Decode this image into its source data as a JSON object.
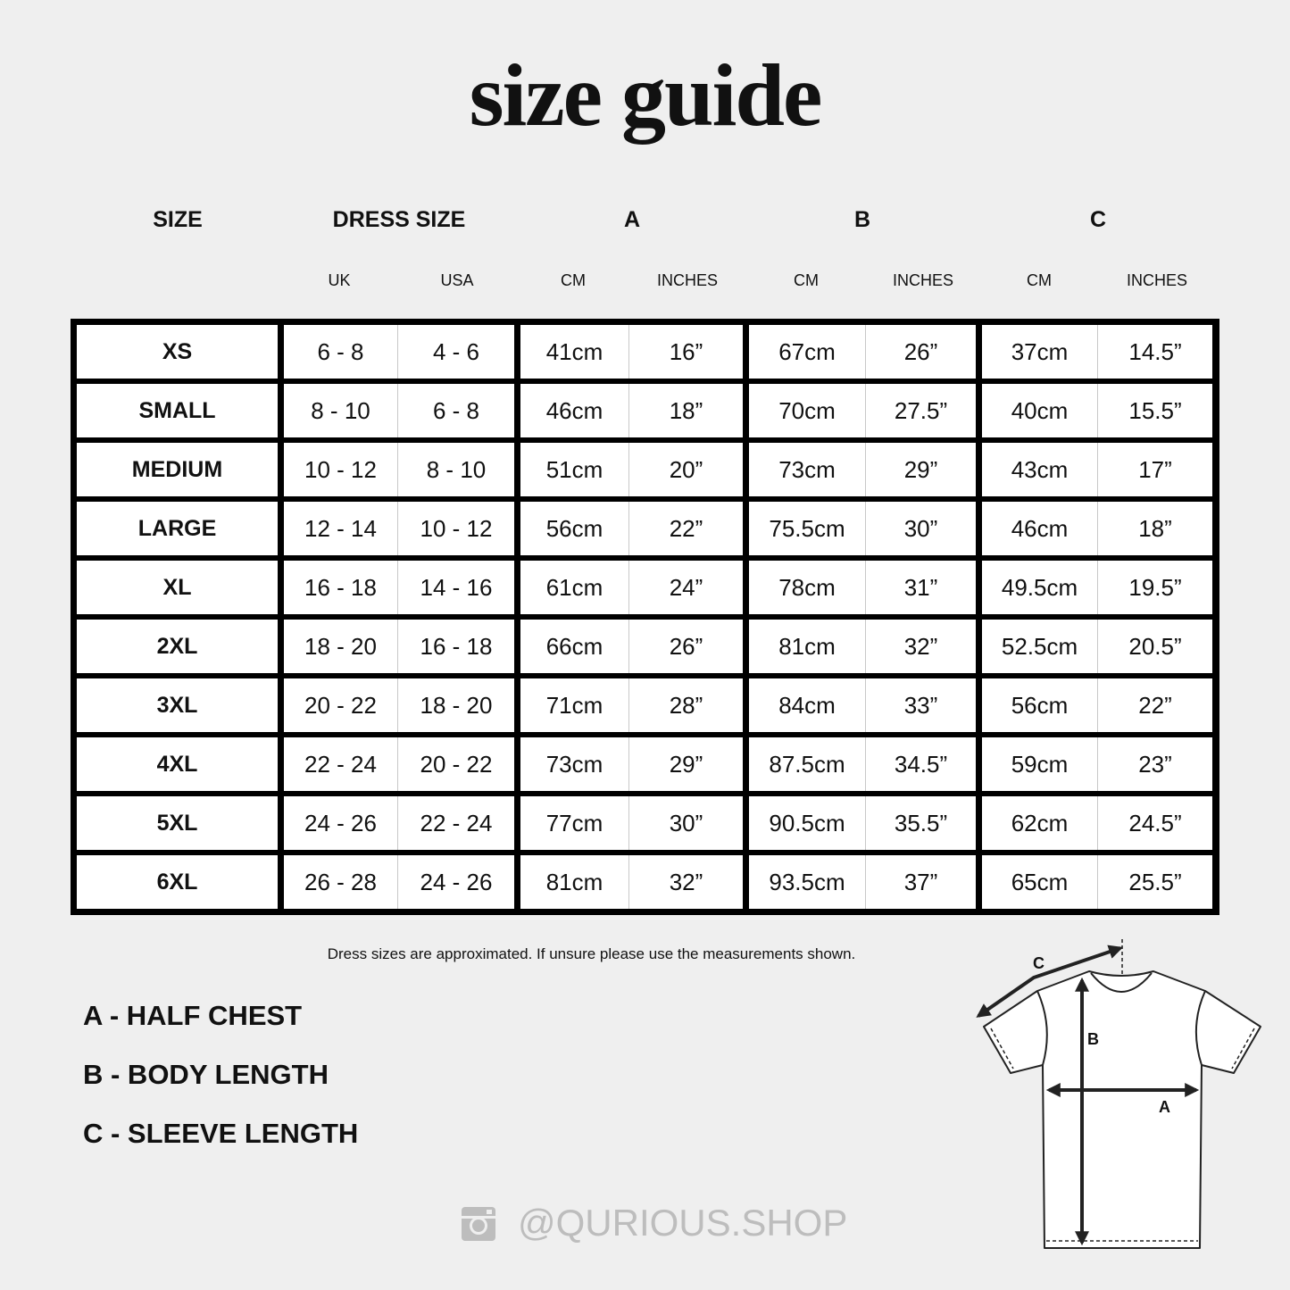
{
  "title": "size guide",
  "headers": {
    "size": "SIZE",
    "dress_size": "DRESS SIZE",
    "a": "A",
    "b": "B",
    "c": "C"
  },
  "subheaders": [
    "UK",
    "USA",
    "CM",
    "INCHES",
    "CM",
    "INCHES",
    "CM",
    "INCHES"
  ],
  "rows": [
    [
      "XS",
      "6 - 8",
      "4 - 6",
      "41cm",
      "16”",
      "67cm",
      "26”",
      "37cm",
      "14.5”"
    ],
    [
      "SMALL",
      "8 - 10",
      "6 - 8",
      "46cm",
      "18”",
      "70cm",
      "27.5”",
      "40cm",
      "15.5”"
    ],
    [
      "MEDIUM",
      "10 - 12",
      "8 - 10",
      "51cm",
      "20”",
      "73cm",
      "29”",
      "43cm",
      "17”"
    ],
    [
      "LARGE",
      "12 - 14",
      "10 - 12",
      "56cm",
      "22”",
      "75.5cm",
      "30”",
      "46cm",
      "18”"
    ],
    [
      "XL",
      "16 - 18",
      "14 - 16",
      "61cm",
      "24”",
      "78cm",
      "31”",
      "49.5cm",
      "19.5”"
    ],
    [
      "2XL",
      "18 - 20",
      "16 - 18",
      "66cm",
      "26”",
      "81cm",
      "32”",
      "52.5cm",
      "20.5”"
    ],
    [
      "3XL",
      "20 - 22",
      "18 - 20",
      "71cm",
      "28”",
      "84cm",
      "33”",
      "56cm",
      "22”"
    ],
    [
      "4XL",
      "22 - 24",
      "20 - 22",
      "73cm",
      "29”",
      "87.5cm",
      "34.5”",
      "59cm",
      "23”"
    ],
    [
      "5XL",
      "24 - 26",
      "22 - 24",
      "77cm",
      "30”",
      "90.5cm",
      "35.5”",
      "62cm",
      "24.5”"
    ],
    [
      "6XL",
      "26 - 28",
      "24 - 26",
      "81cm",
      "32”",
      "93.5cm",
      "37”",
      "65cm",
      "25.5”"
    ]
  ],
  "note": "Dress sizes are approximated. If unsure please use the measurements shown.",
  "legend": [
    "A - HALF CHEST",
    "B - BODY LENGTH",
    "C - SLEEVE LENGTH"
  ],
  "diagram": {
    "label_a": "A",
    "label_b": "B",
    "label_c": "C"
  },
  "social": {
    "icon": "instagram-icon",
    "handle": "@QURIOUS.SHOP",
    "color": "#bdbdbd"
  }
}
